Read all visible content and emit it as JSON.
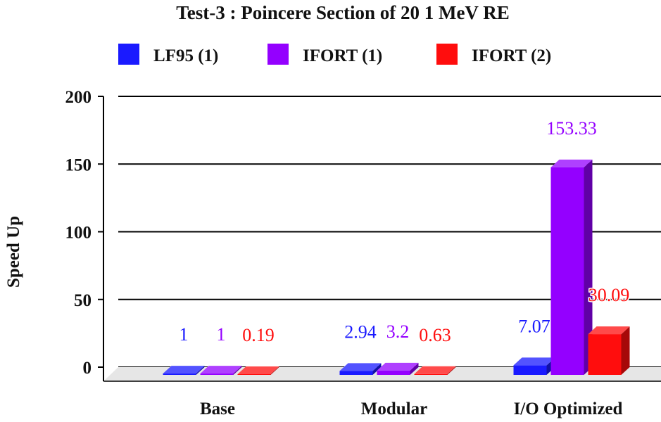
{
  "chart_data": {
    "type": "bar",
    "title": "Test-3 : Poincere Section of 20 1 MeV RE",
    "xlabel": "",
    "ylabel": "Speed Up",
    "ylim": [
      0,
      200
    ],
    "yticks": [
      0,
      50,
      100,
      150,
      200
    ],
    "grid": true,
    "legend_position": "top",
    "categories": [
      "Base",
      "Modular",
      "I/O Optimized"
    ],
    "series": [
      {
        "name": "LF95 (1)",
        "color": "#1a1aff",
        "values": [
          1,
          2.94,
          7.07
        ],
        "labels": [
          "1",
          "2.94",
          "7.07"
        ]
      },
      {
        "name": "IFORT (1)",
        "color": "#9400ff",
        "values": [
          1,
          3.2,
          153.33
        ],
        "labels": [
          "1",
          "3.2",
          "153.33"
        ]
      },
      {
        "name": "IFORT (2)",
        "color": "#ff0d0d",
        "values": [
          0.19,
          0.63,
          30.09
        ],
        "labels": [
          "0.19",
          "0.63",
          "30.09"
        ]
      }
    ]
  }
}
